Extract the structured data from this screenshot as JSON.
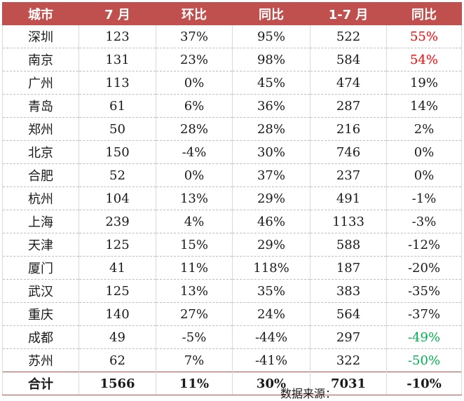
{
  "table": {
    "headers": [
      "城市",
      "7 月",
      "环比",
      "同比",
      "1-7 月",
      "同比"
    ],
    "rows": [
      {
        "city": "深圳",
        "m7": "123",
        "mom": "37%",
        "yoy": "95%",
        "ytd": "522",
        "ytd_yoy": "55%",
        "ytd_yoy_color": "red"
      },
      {
        "city": "南京",
        "m7": "131",
        "mom": "23%",
        "yoy": "98%",
        "ytd": "584",
        "ytd_yoy": "54%",
        "ytd_yoy_color": "red"
      },
      {
        "city": "广州",
        "m7": "113",
        "mom": "0%",
        "yoy": "45%",
        "ytd": "474",
        "ytd_yoy": "19%",
        "ytd_yoy_color": ""
      },
      {
        "city": "青岛",
        "m7": "61",
        "mom": "6%",
        "yoy": "36%",
        "ytd": "287",
        "ytd_yoy": "14%",
        "ytd_yoy_color": ""
      },
      {
        "city": "郑州",
        "m7": "50",
        "mom": "28%",
        "yoy": "28%",
        "ytd": "216",
        "ytd_yoy": "2%",
        "ytd_yoy_color": ""
      },
      {
        "city": "北京",
        "m7": "150",
        "mom": "-4%",
        "yoy": "30%",
        "ytd": "746",
        "ytd_yoy": "0%",
        "ytd_yoy_color": ""
      },
      {
        "city": "合肥",
        "m7": "52",
        "mom": "0%",
        "yoy": "37%",
        "ytd": "237",
        "ytd_yoy": "0%",
        "ytd_yoy_color": ""
      },
      {
        "city": "杭州",
        "m7": "104",
        "mom": "13%",
        "yoy": "29%",
        "ytd": "491",
        "ytd_yoy": "-1%",
        "ytd_yoy_color": ""
      },
      {
        "city": "上海",
        "m7": "239",
        "mom": "4%",
        "yoy": "46%",
        "ytd": "1133",
        "ytd_yoy": "-3%",
        "ytd_yoy_color": ""
      },
      {
        "city": "天津",
        "m7": "125",
        "mom": "15%",
        "yoy": "29%",
        "ytd": "588",
        "ytd_yoy": "-12%",
        "ytd_yoy_color": ""
      },
      {
        "city": "厦门",
        "m7": "41",
        "mom": "11%",
        "yoy": "118%",
        "ytd": "187",
        "ytd_yoy": "-20%",
        "ytd_yoy_color": ""
      },
      {
        "city": "武汉",
        "m7": "125",
        "mom": "13%",
        "yoy": "35%",
        "ytd": "383",
        "ytd_yoy": "-35%",
        "ytd_yoy_color": ""
      },
      {
        "city": "重庆",
        "m7": "140",
        "mom": "27%",
        "yoy": "24%",
        "ytd": "564",
        "ytd_yoy": "-37%",
        "ytd_yoy_color": ""
      },
      {
        "city": "成都",
        "m7": "49",
        "mom": "-5%",
        "yoy": "-44%",
        "ytd": "297",
        "ytd_yoy": "-49%",
        "ytd_yoy_color": "green"
      },
      {
        "city": "苏州",
        "m7": "62",
        "mom": "7%",
        "yoy": "-41%",
        "ytd": "322",
        "ytd_yoy": "-50%",
        "ytd_yoy_color": "green"
      }
    ],
    "total": {
      "city": "合计",
      "m7": "1566",
      "mom": "11%",
      "yoy": "30%",
      "ytd": "7031",
      "ytd_yoy": "-10%"
    }
  },
  "colors": {
    "header_bg": "#c0504d",
    "header_text": "#ffffff",
    "positive_highlight": "#ff0000",
    "negative_highlight": "#00b050"
  },
  "footer": {
    "source_note": "数据来源："
  }
}
